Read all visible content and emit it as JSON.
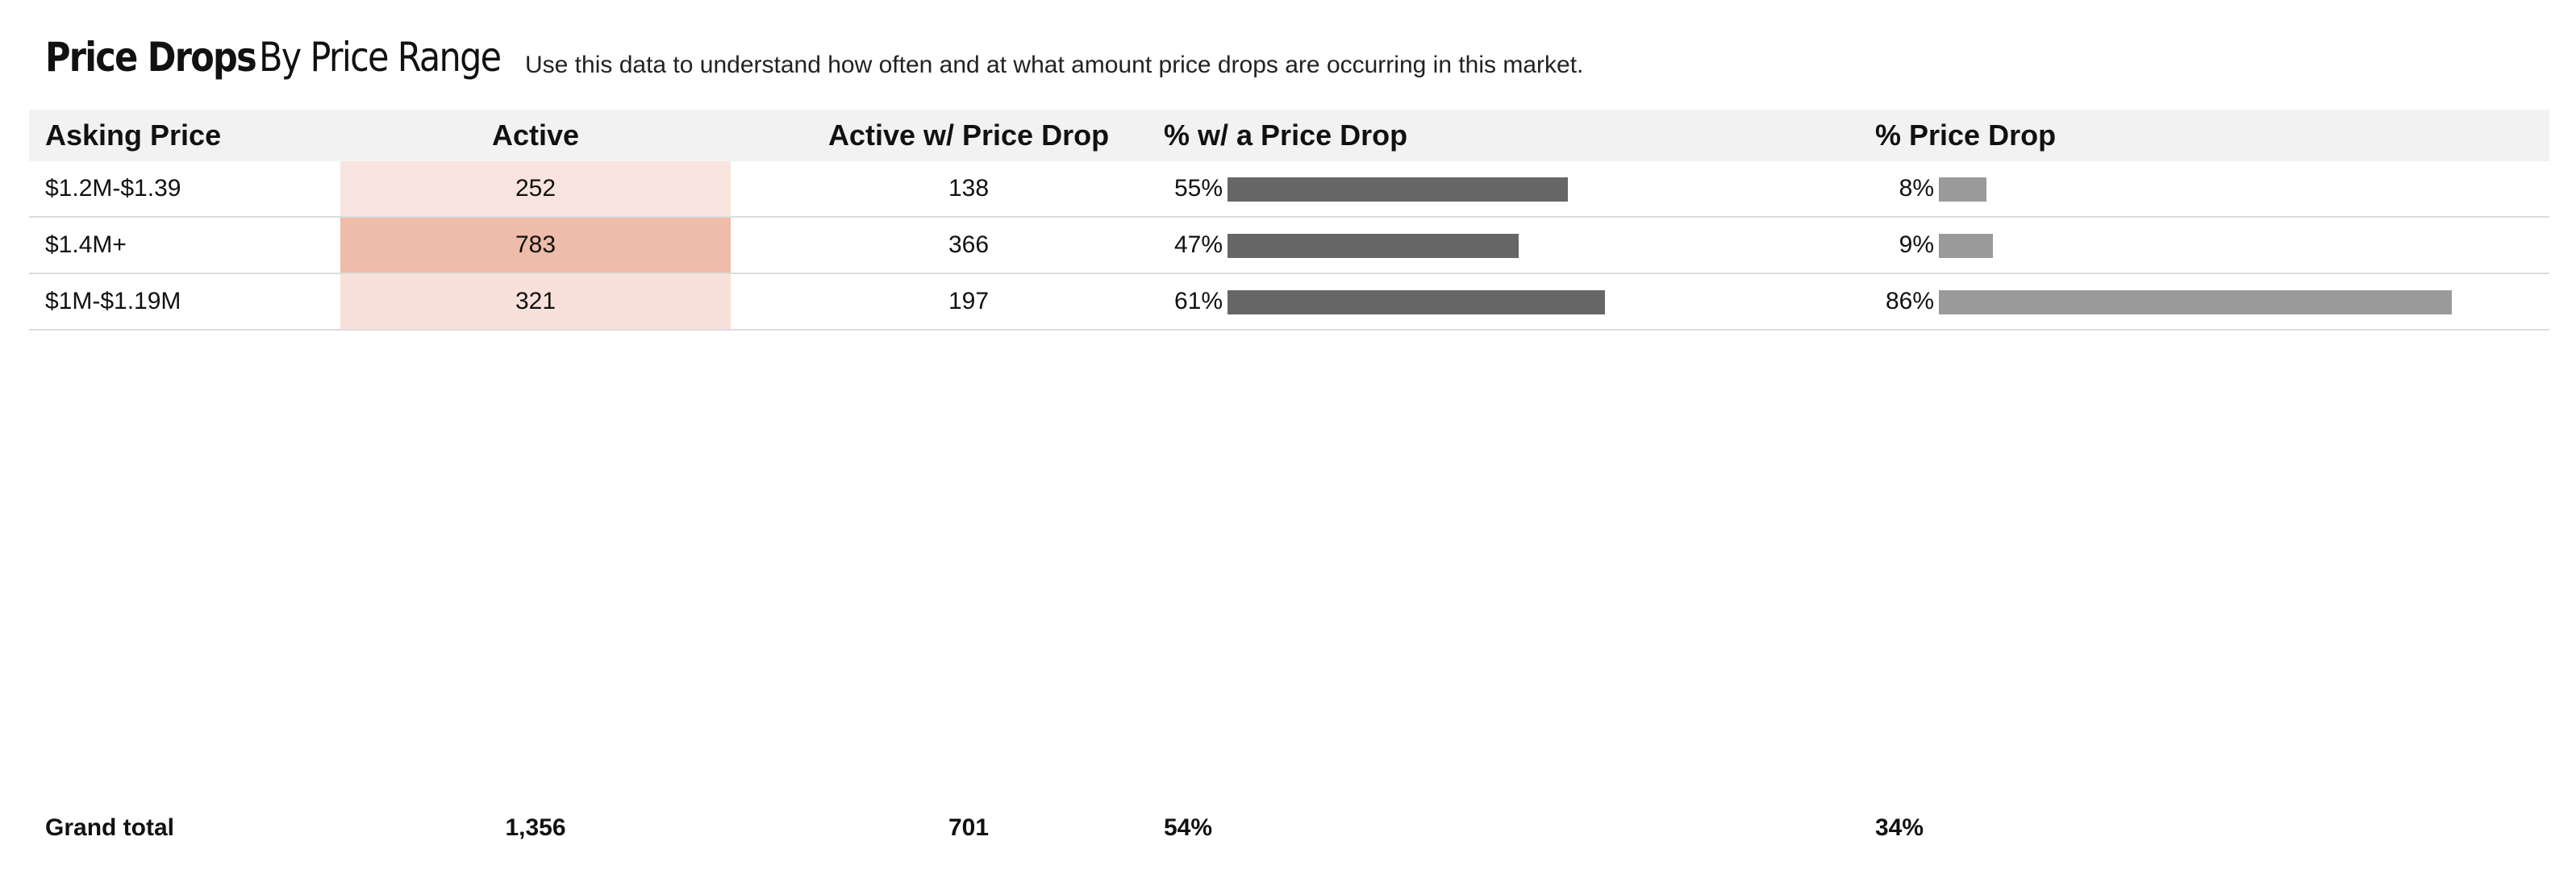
{
  "title": {
    "bold": "Price Drops",
    "rest": "By Price Range"
  },
  "subtitle": "Use this data to understand how often and at what amount price drops are occurring in this market.",
  "columns": {
    "asking_price": "Asking Price",
    "active": "Active",
    "active_price_drop": "Active w/ Price Drop",
    "pct_with_drop": "% w/ a Price Drop",
    "pct_price_drop": "% Price Drop"
  },
  "rows": [
    {
      "asking_price": "$1.2M-$1.39",
      "active": "252",
      "active_price_drop": "138",
      "pct_with_drop": "55%",
      "pct_with_drop_value": 0.55,
      "pct_price_drop": "8%",
      "pct_price_drop_value": 0.08,
      "heat_color": "#f8e4de"
    },
    {
      "asking_price": "$1.4M+",
      "active": "783",
      "active_price_drop": "366",
      "pct_with_drop": "47%",
      "pct_with_drop_value": 0.47,
      "pct_price_drop": "9%",
      "pct_price_drop_value": 0.09,
      "heat_color": "#eebca9"
    },
    {
      "asking_price": "$1M-$1.19M",
      "active": "321",
      "active_price_drop": "197",
      "pct_with_drop": "61%",
      "pct_with_drop_value": 0.61,
      "pct_price_drop": "86%",
      "pct_price_drop_value": 0.86,
      "heat_color": "#f8e1da"
    }
  ],
  "grand_total": {
    "label": "Grand total",
    "active": "1,356",
    "active_price_drop": "701",
    "pct_with_drop": "54%",
    "pct_price_drop": "34%"
  },
  "colors": {
    "bar_pct_with_drop": "#666666",
    "bar_pct_price_drop": "#9a9a9a",
    "header_bg": "#f2f2f2"
  }
}
